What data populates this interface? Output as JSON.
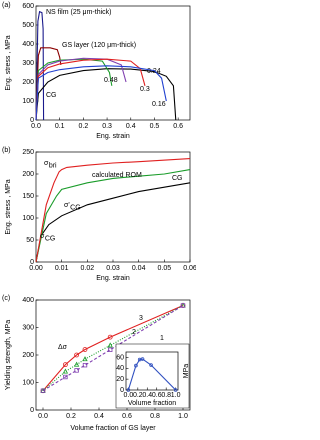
{
  "chart_data": [
    {
      "type": "line",
      "panel_label": "(a)",
      "x_label": "Eng. strain",
      "y_label": "Eng. stress , MPa",
      "xlim": [
        0,
        0.65
      ],
      "xticks": [
        {
          "value": 0,
          "label": "0.0"
        },
        0.1,
        0.2,
        0.3,
        0.4,
        0.5,
        0.6
      ],
      "ylim": [
        0,
        600
      ],
      "yticks": [
        0,
        100,
        200,
        300,
        400,
        500,
        600
      ],
      "series": [
        {
          "name": "NS film (25 μm-thick)",
          "color": "#1a1a8c",
          "x": [
            0,
            0.008,
            0.015,
            0.025,
            0.03,
            0.032
          ],
          "values": [
            0,
            520,
            570,
            565,
            480,
            0
          ]
        },
        {
          "name": "GS layer (120 μm-thick)",
          "color": "#8b0000",
          "x": [
            0,
            0.01,
            0.02,
            0.06,
            0.09,
            0.1,
            0.105
          ],
          "values": [
            0,
            340,
            380,
            380,
            370,
            330,
            290
          ]
        },
        {
          "name": "CG",
          "color": "#000000",
          "x": [
            0,
            0.01,
            0.05,
            0.1,
            0.2,
            0.3,
            0.4,
            0.5,
            0.55,
            0.58,
            0.59
          ],
          "values": [
            0,
            140,
            200,
            235,
            260,
            270,
            268,
            255,
            230,
            180,
            0
          ]
        },
        {
          "name": "0.48",
          "color": "#1a9c2a",
          "x": [
            0,
            0.01,
            0.05,
            0.1,
            0.2,
            0.28,
            0.31,
            0.32
          ],
          "values": [
            0,
            260,
            300,
            315,
            320,
            310,
            250,
            180
          ]
        },
        {
          "name": "0.3",
          "color": "#8040b0",
          "x": [
            0,
            0.01,
            0.05,
            0.1,
            0.2,
            0.3,
            0.36,
            0.38
          ],
          "values": [
            0,
            240,
            290,
            310,
            325,
            320,
            290,
            200
          ]
        },
        {
          "name": "0.24",
          "color": "#e02020",
          "x": [
            0,
            0.01,
            0.05,
            0.1,
            0.2,
            0.3,
            0.4,
            0.44,
            0.46
          ],
          "values": [
            0,
            230,
            275,
            295,
            315,
            320,
            310,
            270,
            180
          ]
        },
        {
          "name": "0.16",
          "color": "#2040d0",
          "x": [
            0,
            0.01,
            0.05,
            0.1,
            0.2,
            0.3,
            0.4,
            0.5,
            0.53,
            0.55
          ],
          "values": [
            0,
            220,
            250,
            265,
            280,
            285,
            280,
            260,
            220,
            100
          ]
        }
      ]
    },
    {
      "type": "line",
      "panel_label": "(b)",
      "x_label": "Eng. strain",
      "y_label": "Eng. stress , MPa",
      "xlim": [
        0,
        0.06
      ],
      "xticks": [
        {
          "value": 0,
          "label": "0.00"
        },
        {
          "value": 0.01,
          "label": "0.01"
        },
        {
          "value": 0.02,
          "label": "0.02"
        },
        {
          "value": 0.03,
          "label": "0.03"
        },
        {
          "value": 0.04,
          "label": "0.04"
        },
        {
          "value": 0.05,
          "label": "0.05"
        },
        {
          "value": 0.06,
          "label": "0.06"
        }
      ],
      "ylim": [
        0,
        250
      ],
      "yticks": [
        0,
        50,
        100,
        150,
        200,
        250
      ],
      "series": [
        {
          "name": "CG",
          "color": "#000000",
          "x": [
            0,
            0.002,
            0.005,
            0.01,
            0.02,
            0.03,
            0.04,
            0.05,
            0.06
          ],
          "values": [
            0,
            60,
            85,
            105,
            130,
            145,
            160,
            170,
            180
          ]
        },
        {
          "name": "calculated ROM",
          "color": "#1a9c2a",
          "x": [
            0,
            0.004,
            0.008,
            0.01,
            0.02,
            0.03,
            0.04,
            0.05,
            0.06
          ],
          "values": [
            0,
            110,
            150,
            165,
            180,
            190,
            195,
            200,
            210
          ]
        },
        {
          "color": "#e02020",
          "x": [
            0,
            0.004,
            0.007,
            0.009,
            0.01,
            0.012,
            0.02,
            0.03,
            0.04,
            0.06
          ],
          "values": [
            0,
            130,
            180,
            205,
            210,
            215,
            220,
            225,
            228,
            235
          ]
        }
      ],
      "annotations": [
        {
          "text": "σ",
          "sub": "bri"
        },
        {
          "text": "σ",
          "sub": "CG"
        },
        {
          "text": "σ'",
          "sub": "CG"
        }
      ]
    },
    {
      "type": "line",
      "panel_label": "(c)",
      "x_label": "Volume fraction of GS layer",
      "y_label": "Yielding strength, MPa",
      "xlim": [
        -0.05,
        1.05
      ],
      "xticks": [
        {
          "value": 0,
          "label": "0.0"
        },
        0.2,
        0.4,
        0.6,
        0.8,
        {
          "value": 1,
          "label": "1.0"
        }
      ],
      "ylim": [
        0,
        400
      ],
      "yticks": [
        0,
        100,
        200,
        300,
        400
      ],
      "x": [
        0,
        0.16,
        0.24,
        0.3,
        0.48,
        1.0
      ],
      "series": [
        {
          "name": "3",
          "color": "#e02020",
          "marker": "circle",
          "line_style": "solid",
          "values": [
            70,
            165,
            200,
            220,
            265,
            380
          ]
        },
        {
          "name": "2",
          "color": "#1a9c2a",
          "marker": "triangle",
          "line_style": "dotted",
          "values": [
            70,
            140,
            165,
            185,
            235,
            380
          ]
        },
        {
          "name": "1",
          "color": "#8040b0",
          "marker": "square",
          "line_style": "dashed",
          "values": [
            70,
            120,
            144,
            163,
            219,
            380
          ]
        }
      ],
      "annotations": [
        {
          "text": "Δσ"
        }
      ]
    },
    {
      "type": "line",
      "x_label": "Volume fraction",
      "y_label": "MPa",
      "xlim": [
        -0.05,
        1.05
      ],
      "xticks": [
        {
          "value": 0,
          "label": "0.0"
        },
        0.2,
        0.4,
        0.6,
        0.8,
        {
          "value": 1,
          "label": "1.0"
        }
      ],
      "ylim": [
        0,
        70
      ],
      "yticks": [
        0,
        20,
        40,
        60
      ],
      "x": [
        0,
        0.16,
        0.24,
        0.3,
        0.48,
        1.0
      ],
      "series": [
        {
          "color": "#3050c0",
          "marker": "circle",
          "line_style": "solid",
          "values": [
            0,
            45,
            56,
            57,
            46,
            0
          ]
        }
      ]
    }
  ]
}
